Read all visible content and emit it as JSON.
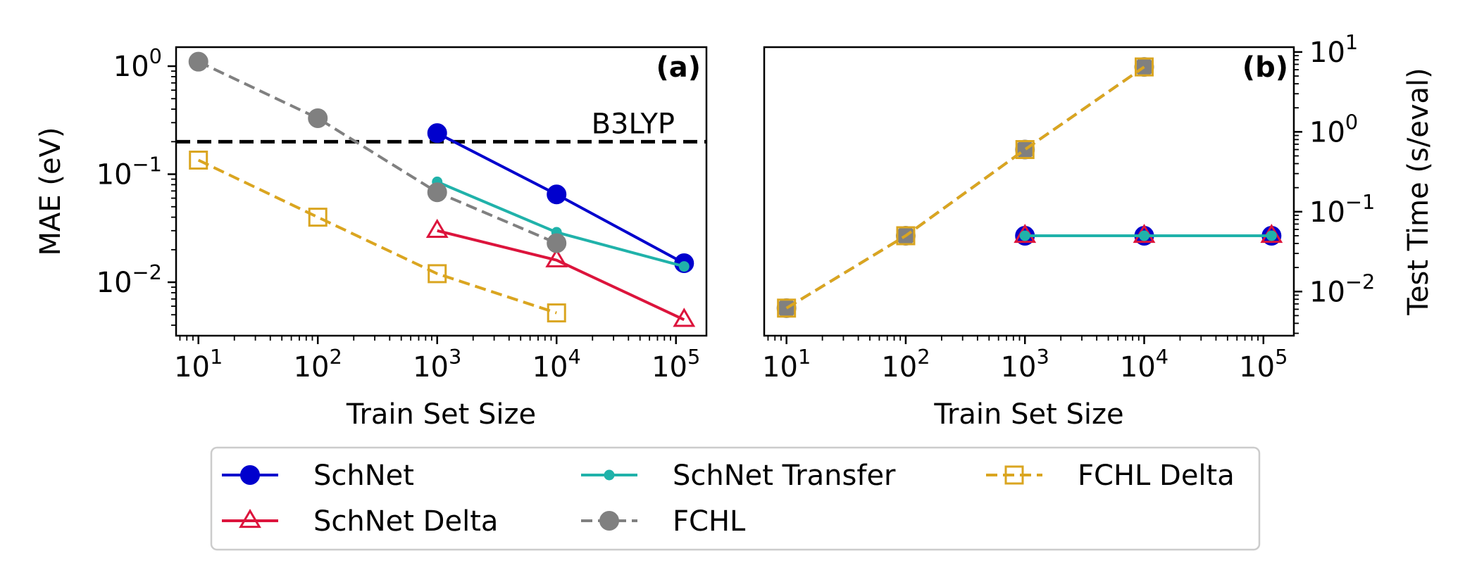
{
  "chart_data": [
    {
      "type": "line",
      "panel_label": "(a)",
      "xlabel": "Train Set Size",
      "ylabel": "MAE (eV)",
      "xscale": "log",
      "yscale": "log",
      "xlim": [
        6.5,
        180000
      ],
      "ylim": [
        0.0032,
        1.5
      ],
      "x_ticks": [
        10,
        100,
        1000,
        10000,
        100000
      ],
      "x_tick_labels": [
        {
          "base": "10",
          "exp": "1"
        },
        {
          "base": "10",
          "exp": "2"
        },
        {
          "base": "10",
          "exp": "3"
        },
        {
          "base": "10",
          "exp": "4"
        },
        {
          "base": "10",
          "exp": "5"
        }
      ],
      "y_ticks": [
        1,
        0.1,
        0.01
      ],
      "y_tick_labels": [
        {
          "base": "10",
          "exp": "0"
        },
        {
          "base": "10",
          "exp": "−1"
        },
        {
          "base": "10",
          "exp": "−2"
        }
      ],
      "reference_line": {
        "label": "B3LYP",
        "y": 0.2
      },
      "series": [
        {
          "key": "schnet",
          "x": [
            1000,
            10000,
            117000
          ],
          "y": [
            0.24,
            0.065,
            0.015
          ]
        },
        {
          "key": "schnet_transfer",
          "x": [
            1000,
            10000,
            117000
          ],
          "y": [
            0.085,
            0.029,
            0.014
          ]
        },
        {
          "key": "schnet_delta",
          "x": [
            1000,
            10000,
            117000
          ],
          "y": [
            0.03,
            0.016,
            0.0045
          ]
        },
        {
          "key": "fchl",
          "x": [
            10,
            100,
            1000,
            10000
          ],
          "y": [
            1.1,
            0.33,
            0.068,
            0.023
          ]
        },
        {
          "key": "fchl_delta",
          "x": [
            10,
            100,
            1000,
            10000
          ],
          "y": [
            0.135,
            0.04,
            0.012,
            0.0052
          ]
        }
      ]
    },
    {
      "type": "line",
      "panel_label": "(b)",
      "xlabel": "Train Set Size",
      "ylabel": "Test Time (s/eval)",
      "xscale": "log",
      "yscale": "log",
      "xlim": [
        6.5,
        180000
      ],
      "ylim": [
        0.0028,
        11.5
      ],
      "x_ticks": [
        10,
        100,
        1000,
        10000,
        100000
      ],
      "x_tick_labels": [
        {
          "base": "10",
          "exp": "1"
        },
        {
          "base": "10",
          "exp": "2"
        },
        {
          "base": "10",
          "exp": "3"
        },
        {
          "base": "10",
          "exp": "4"
        },
        {
          "base": "10",
          "exp": "5"
        }
      ],
      "y_ticks": [
        10,
        1,
        0.1,
        0.01
      ],
      "y_tick_labels": [
        {
          "base": "10",
          "exp": "1"
        },
        {
          "base": "10",
          "exp": "0"
        },
        {
          "base": "10",
          "exp": "−1"
        },
        {
          "base": "10",
          "exp": "−2"
        }
      ],
      "series": [
        {
          "key": "fchl",
          "x": [
            10,
            100,
            1000,
            10000
          ],
          "y": [
            0.0062,
            0.05,
            0.6,
            6.5
          ]
        },
        {
          "key": "fchl_delta",
          "x": [
            10,
            100,
            1000,
            10000
          ],
          "y": [
            0.0062,
            0.05,
            0.6,
            6.5
          ]
        },
        {
          "key": "schnet",
          "x": [
            1000,
            10000,
            117000
          ],
          "y": [
            0.05,
            0.05,
            0.05
          ]
        },
        {
          "key": "schnet_delta",
          "x": [
            1000,
            10000,
            117000
          ],
          "y": [
            0.05,
            0.05,
            0.05
          ]
        },
        {
          "key": "schnet_transfer",
          "x": [
            1000,
            10000,
            117000
          ],
          "y": [
            0.05,
            0.05,
            0.05
          ]
        }
      ]
    }
  ],
  "legend": {
    "placement": "bottom-center",
    "entries": [
      {
        "key": "schnet",
        "name": "SchNet",
        "color": "#0000cd",
        "linestyle": "solid",
        "marker": "filled-circle"
      },
      {
        "key": "schnet_transfer",
        "name": "SchNet Transfer",
        "color": "#20b2aa",
        "linestyle": "solid",
        "marker": "small-dot"
      },
      {
        "key": "fchl_delta",
        "name": "FCHL Delta",
        "color": "#daa520",
        "linestyle": "dashed",
        "marker": "open-square"
      },
      {
        "key": "schnet_delta",
        "name": "SchNet Delta",
        "color": "#dc143c",
        "linestyle": "solid",
        "marker": "open-triangle"
      },
      {
        "key": "fchl",
        "name": "FCHL",
        "color": "#808080",
        "linestyle": "dashed",
        "marker": "filled-circle"
      }
    ]
  }
}
